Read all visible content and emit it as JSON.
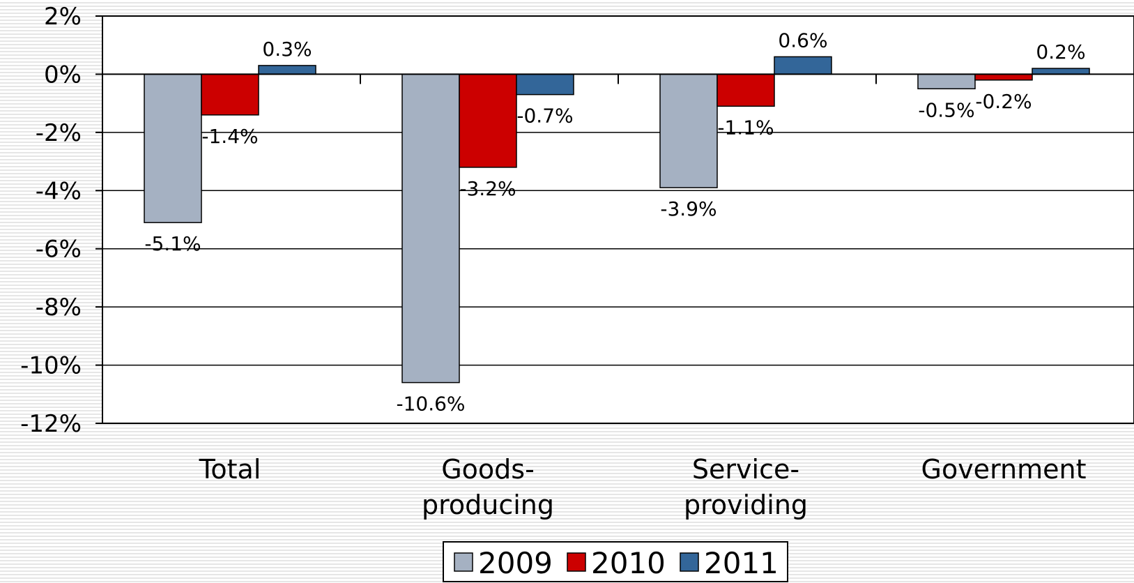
{
  "chart_data": {
    "type": "bar",
    "categories": [
      [
        "Total"
      ],
      [
        "Goods-",
        "producing"
      ],
      [
        "Service-",
        "providing"
      ],
      [
        "Government"
      ]
    ],
    "series": [
      {
        "name": "2009",
        "values": [
          -5.1,
          -10.6,
          -3.9,
          -0.5
        ],
        "labels": [
          "-5.1%",
          "-10.6%",
          "-3.9%",
          "-0.5%"
        ],
        "color": "#a5b1c2"
      },
      {
        "name": "2010",
        "values": [
          -1.4,
          -3.2,
          -1.1,
          -0.2
        ],
        "labels": [
          "-1.4%",
          "-3.2%",
          "-1.1%",
          "-0.2%"
        ],
        "color": "#cc0000"
      },
      {
        "name": "2011",
        "values": [
          0.3,
          -0.7,
          0.6,
          0.2
        ],
        "labels": [
          "0.3%",
          "-0.7%",
          "0.6%",
          "0.2%"
        ],
        "color": "#336699"
      }
    ],
    "yticks": [
      2,
      0,
      -2,
      -4,
      -6,
      -8,
      -10,
      -12
    ],
    "ytick_labels": [
      "2%",
      "0%",
      "-2%",
      "-4%",
      "-6%",
      "-8%",
      "-10%",
      "-12%"
    ],
    "ylim": [
      -12,
      2
    ],
    "grid": true,
    "legend_position": "bottom"
  }
}
